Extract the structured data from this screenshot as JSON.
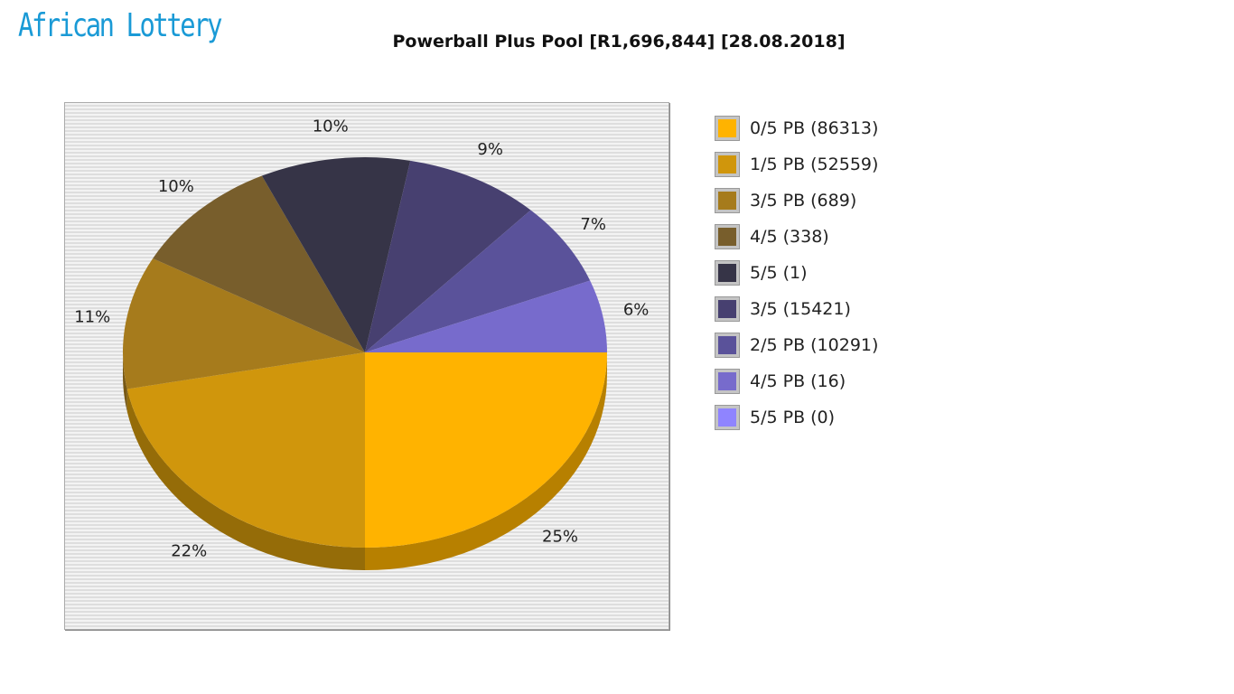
{
  "logo": "African Lottery",
  "chart_data": {
    "type": "pie",
    "title": "Powerball Plus Pool [R1,696,844] [28.08.2018]",
    "legend_position": "right",
    "slices": [
      {
        "legend": "0/5 PB (86313)",
        "percent": 25,
        "label": "25%",
        "color": "#ffb300"
      },
      {
        "legend": "1/5 PB (52559)",
        "percent": 22,
        "label": "22%",
        "color": "#d0960c"
      },
      {
        "legend": "3/5 PB (689)",
        "percent": 11,
        "label": "11%",
        "color": "#a67b1c"
      },
      {
        "legend": "4/5 (338)",
        "percent": 10,
        "label": "10%",
        "color": "#785e2c"
      },
      {
        "legend": "5/5 (1)",
        "percent": 10,
        "label": "10%",
        "color": "#363447"
      },
      {
        "legend": "3/5 (15421)",
        "percent": 9,
        "label": "9%",
        "color": "#474070"
      },
      {
        "legend": "2/5 PB (10291)",
        "percent": 7,
        "label": "7%",
        "color": "#5a529a"
      },
      {
        "legend": "4/5 PB (16)",
        "percent": 6,
        "label": "6%",
        "color": "#776bcc"
      },
      {
        "legend": "5/5 PB (0)",
        "percent": 0,
        "label": "",
        "color": "#8f84ff"
      }
    ]
  }
}
